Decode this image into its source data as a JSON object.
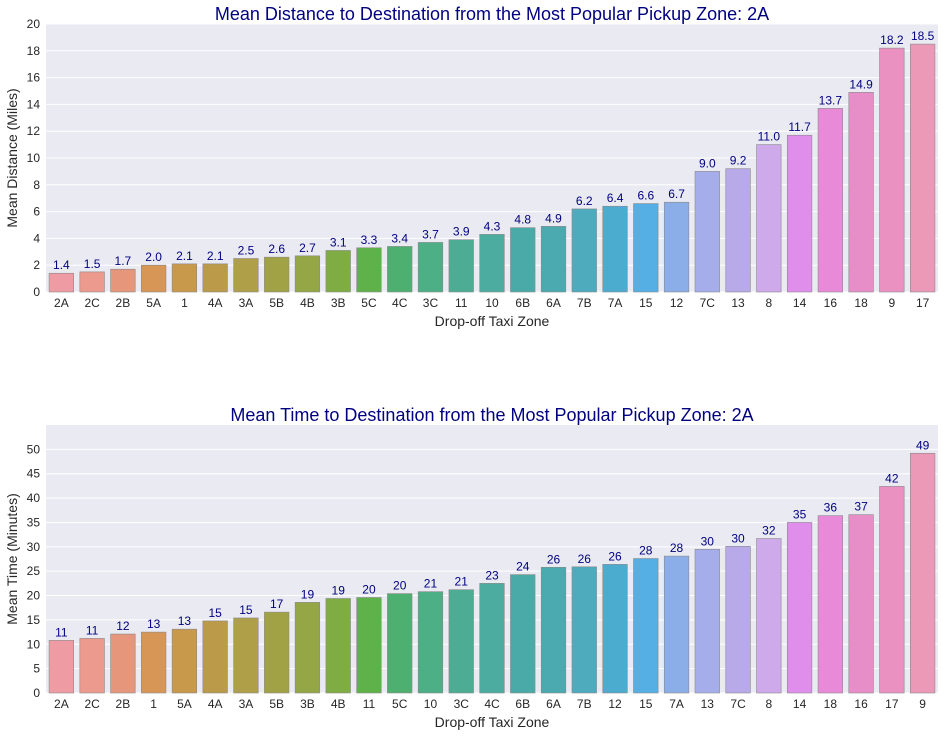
{
  "chart_data": [
    {
      "type": "bar",
      "title": "Mean Distance to Destination from the Most Popular Pickup Zone: 2A",
      "xlabel": "Drop-off Taxi Zone",
      "ylabel": "Mean Distance (Miles)",
      "ylim": [
        0,
        20
      ],
      "yticks": [
        0,
        2,
        4,
        6,
        8,
        10,
        12,
        14,
        16,
        18,
        20
      ],
      "value_decimals": 1,
      "grid": true,
      "categories": [
        "2A",
        "2C",
        "2B",
        "5A",
        "1",
        "4A",
        "3A",
        "5B",
        "4B",
        "3B",
        "5C",
        "4C",
        "3C",
        "11",
        "10",
        "6B",
        "6A",
        "7B",
        "7A",
        "15",
        "12",
        "7C",
        "13",
        "8",
        "14",
        "16",
        "18",
        "9",
        "17"
      ],
      "values": [
        1.4,
        1.5,
        1.7,
        2.0,
        2.1,
        2.1,
        2.5,
        2.6,
        2.7,
        3.1,
        3.3,
        3.4,
        3.7,
        3.9,
        4.3,
        4.8,
        4.9,
        6.2,
        6.4,
        6.6,
        6.7,
        9.0,
        9.2,
        11.0,
        11.7,
        13.7,
        14.9,
        18.2,
        18.5
      ],
      "colors": [
        "#ee9ba3",
        "#ec9a8e",
        "#e5967b",
        "#d89656",
        "#c8984b",
        "#bb9b49",
        "#ae9f48",
        "#a1a245",
        "#94a646",
        "#80ac44",
        "#5fb14a",
        "#4eb070",
        "#4daf86",
        "#4cad94",
        "#4bac9f",
        "#4aaaa7",
        "#4aaab0",
        "#4dabbd",
        "#4cacd0",
        "#55aee4",
        "#8baee9",
        "#a5aeea",
        "#b8a9e9",
        "#ceaaeb",
        "#e08eeb",
        "#e98ad8",
        "#e78ec9",
        "#ea91c2",
        "#ec98b7"
      ],
      "label_color": "#000080"
    },
    {
      "type": "bar",
      "title": "Mean Time to Destination from the Most Popular Pickup Zone: 2A",
      "xlabel": "Drop-off Taxi Zone",
      "ylabel": "Mean Time (Minutes)",
      "ylim": [
        0,
        55
      ],
      "yticks": [
        0,
        5,
        10,
        15,
        20,
        25,
        30,
        35,
        40,
        45,
        50
      ],
      "value_decimals": 0,
      "grid": true,
      "categories": [
        "2A",
        "2C",
        "2B",
        "1",
        "5A",
        "4A",
        "3A",
        "5B",
        "3B",
        "4B",
        "11",
        "5C",
        "10",
        "3C",
        "4C",
        "6B",
        "6A",
        "7B",
        "12",
        "15",
        "7A",
        "13",
        "7C",
        "8",
        "14",
        "18",
        "16",
        "17",
        "9"
      ],
      "values": [
        10.8,
        11.2,
        12.1,
        12.5,
        13.1,
        14.8,
        15.4,
        16.6,
        18.6,
        19.4,
        19.6,
        20.4,
        20.8,
        21.2,
        22.5,
        24.3,
        25.8,
        25.9,
        26.4,
        27.6,
        28.1,
        29.5,
        30.1,
        31.7,
        35.0,
        36.4,
        36.6,
        42.4,
        49.2
      ],
      "colors": [
        "#ee9ba3",
        "#ec9a8e",
        "#e5967b",
        "#d89656",
        "#c8984b",
        "#bb9b49",
        "#ae9f48",
        "#a1a245",
        "#94a646",
        "#80ac44",
        "#5fb14a",
        "#4eb070",
        "#4daf86",
        "#4cad94",
        "#4bac9f",
        "#4aaaa7",
        "#4aaab0",
        "#4dabbd",
        "#4cacd0",
        "#55aee4",
        "#8baee9",
        "#a5aeea",
        "#b8a9e9",
        "#ceaaeb",
        "#e08eeb",
        "#e98ad8",
        "#e78ec9",
        "#ea91c2",
        "#ec98b7"
      ],
      "label_color": "#000080"
    }
  ]
}
